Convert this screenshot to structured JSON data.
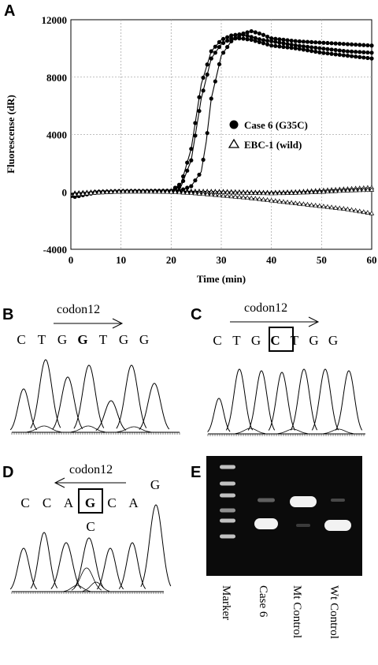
{
  "panels": {
    "A": "A",
    "B": "B",
    "C": "C",
    "D": "D",
    "E": "E"
  },
  "chart_data": {
    "type": "scatter",
    "xlabel": "Time (min)",
    "ylabel": "Fluorescense (dR)",
    "xlim": [
      0,
      60
    ],
    "ylim": [
      -4000,
      12000
    ],
    "xticks": [
      "0",
      "10",
      "20",
      "30",
      "40",
      "50",
      "60"
    ],
    "yticks": [
      "-4000",
      "0",
      "4000",
      "8000",
      "12000"
    ],
    "grid": true,
    "legend_position": "center-right",
    "series": [
      {
        "name": "Case 6 (G35C)",
        "marker": "filled-circle",
        "curves": [
          {
            "x": [
              0,
              5,
              10,
              15,
              20,
              22,
              24,
              26,
              28,
              30,
              32,
              34,
              36,
              38,
              40,
              45,
              50,
              55,
              60
            ],
            "y": [
              -300,
              0,
              50,
              60,
              80,
              600,
              3000,
              7500,
              9800,
              10600,
              10900,
              11000,
              10800,
              10600,
              10500,
              10200,
              10000,
              9800,
              9700
            ]
          },
          {
            "x": [
              0,
              5,
              10,
              15,
              20,
              22,
              24,
              26,
              28,
              30,
              32,
              34,
              36,
              38,
              40,
              45,
              50,
              55,
              60
            ],
            "y": [
              -350,
              -20,
              40,
              50,
              70,
              400,
              2200,
              6500,
              9300,
              10300,
              10700,
              10700,
              10600,
              10400,
              10200,
              10000,
              9700,
              9500,
              9300
            ]
          },
          {
            "x": [
              0,
              5,
              10,
              15,
              20,
              22,
              24,
              26,
              27,
              28,
              30,
              32,
              34,
              36,
              38,
              40,
              45,
              50,
              55,
              60
            ],
            "y": [
              -400,
              -50,
              30,
              40,
              60,
              120,
              400,
              1400,
              3500,
              6500,
              9500,
              10500,
              11000,
              11200,
              11000,
              10700,
              10500,
              10400,
              10300,
              10200
            ]
          }
        ]
      },
      {
        "name": "EBC-1 (wild)",
        "marker": "open-triangle",
        "curves": [
          {
            "x": [
              0,
              5,
              10,
              15,
              20,
              25,
              30,
              35,
              40,
              45,
              50,
              55,
              60
            ],
            "y": [
              -100,
              0,
              50,
              50,
              60,
              40,
              20,
              -20,
              -50,
              0,
              100,
              200,
              300
            ]
          },
          {
            "x": [
              0,
              5,
              10,
              15,
              20,
              25,
              30,
              35,
              40,
              45,
              50,
              55,
              60
            ],
            "y": [
              -150,
              -20,
              30,
              30,
              20,
              0,
              -20,
              -60,
              -100,
              -60,
              0,
              100,
              150
            ]
          },
          {
            "x": [
              0,
              5,
              10,
              15,
              20,
              25,
              30,
              35,
              40,
              45,
              50,
              55,
              60
            ],
            "y": [
              -200,
              -50,
              20,
              20,
              0,
              -100,
              -250,
              -400,
              -600,
              -800,
              -1000,
              -1200,
              -1500
            ]
          }
        ]
      }
    ]
  },
  "panelB": {
    "codon": "codon12",
    "bases": [
      "C",
      "T",
      "G",
      "G",
      "T",
      "G",
      "G"
    ]
  },
  "panelC": {
    "codon": "codon12",
    "bases": [
      "C",
      "T",
      "G",
      "C",
      "T",
      "G",
      "G"
    ]
  },
  "panelD": {
    "codon": "codon12",
    "bases": [
      "C",
      "C",
      "A",
      "G",
      "C",
      "A",
      "G"
    ],
    "secondary": "C"
  },
  "panelE": {
    "lanes": [
      "Marker",
      "Case 6",
      "Mt Control",
      "Wt Control"
    ]
  }
}
